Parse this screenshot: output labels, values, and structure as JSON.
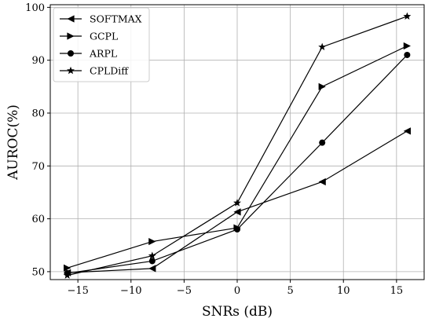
{
  "chart_data": {
    "type": "line",
    "xlabel": "SNRs (dB)",
    "ylabel": "AUROC(%)",
    "xlim": [
      -17.6,
      17.6
    ],
    "ylim": [
      48.5,
      100.5
    ],
    "xticks": [
      -15,
      -10,
      -5,
      0,
      5,
      10,
      15
    ],
    "yticks": [
      50,
      60,
      70,
      80,
      90,
      100
    ],
    "x_tick_labels": [
      "−15",
      "−10",
      "−5",
      "0",
      "5",
      "10",
      "15"
    ],
    "y_tick_labels": [
      "50",
      "60",
      "70",
      "80",
      "90",
      "100"
    ],
    "grid": true,
    "legend_position": "top-left",
    "x": [
      -16,
      -8,
      0,
      8,
      16
    ],
    "series": [
      {
        "name": "SOFTMAX",
        "marker": "triangle-left",
        "color": "#000000",
        "values": [
          49.8,
          50.6,
          61.3,
          67.0,
          76.6
        ]
      },
      {
        "name": "GCPL",
        "marker": "triangle-right",
        "color": "#000000",
        "values": [
          50.7,
          55.7,
          58.3,
          85.0,
          92.7
        ]
      },
      {
        "name": "ARPL",
        "marker": "circle",
        "color": "#000000",
        "values": [
          49.7,
          52.0,
          58.0,
          74.4,
          91.0
        ]
      },
      {
        "name": "CPLDiff",
        "marker": "star",
        "color": "#000000",
        "values": [
          49.3,
          53.0,
          63.0,
          92.5,
          98.3
        ]
      }
    ]
  }
}
